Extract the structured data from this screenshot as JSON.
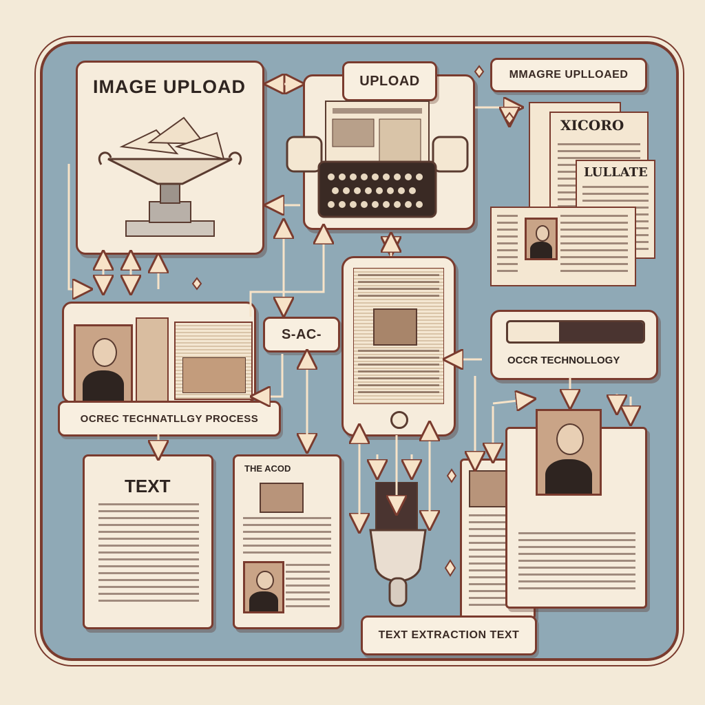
{
  "labels": {
    "image_upload": "IMAGE UPLOAD",
    "upload": "UPLOAD",
    "image_uploaded": "MMAGRE UPLLOAED",
    "newspaper_headline_1": "XICORO",
    "newspaper_headline_2": "LULLATE",
    "center_tag": "S-AC-",
    "ocr_technology": "OCCR TECHNOLLOGY",
    "ocr_process": "OCREC TECHNATLLGY PROCESS",
    "text": "TEXT",
    "article_title": "THE ACOD",
    "text_extraction": "TEXT EXTRACTION TEXT"
  },
  "colors": {
    "background": "#f3ead8",
    "panel": "#8fa9b6",
    "outline": "#7a3b2e",
    "card": "#f6ecdc",
    "arrow": "#f7e3c8"
  },
  "icons": [
    "upload-bowl-icon",
    "scanner-typewriter-icon",
    "newspaper-stack-icon",
    "tablet-icon",
    "file-folder-icon",
    "text-document-icon",
    "article-document-icon",
    "scanner-wand-icon",
    "portrait-document-icon",
    "progress-bar-icon",
    "sparkle-icon"
  ]
}
